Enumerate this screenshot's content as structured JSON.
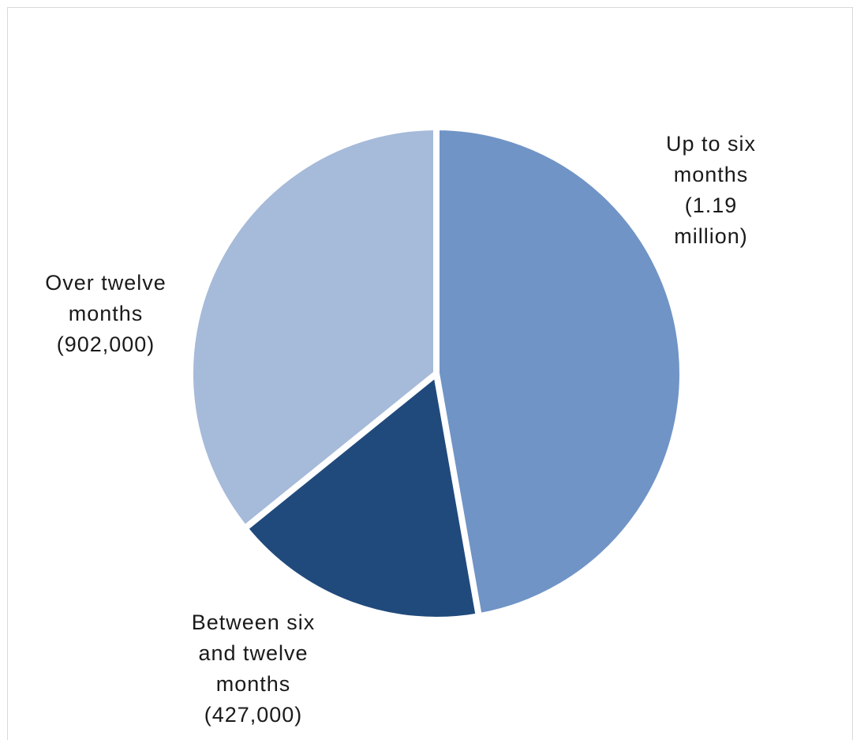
{
  "chart_data": {
    "type": "pie",
    "title": "",
    "start_angle_deg": 0,
    "direction": "clockwise",
    "slices": [
      {
        "name": "Up to six months",
        "value": 1190000,
        "label_lines": [
          "Up to six",
          "months",
          "(1.19",
          "million)"
        ],
        "color": "#7094c6"
      },
      {
        "name": "Between six and twelve months",
        "value": 427000,
        "label_lines": [
          "Between six",
          "and twelve",
          "months",
          "(427,000)"
        ],
        "color": "#214a7c"
      },
      {
        "name": "Over twelve months",
        "value": 902000,
        "label_lines": [
          "Over twelve",
          "months",
          "(902,000)"
        ],
        "color": "#a6bad9"
      }
    ],
    "legend": "none",
    "grid": false
  }
}
